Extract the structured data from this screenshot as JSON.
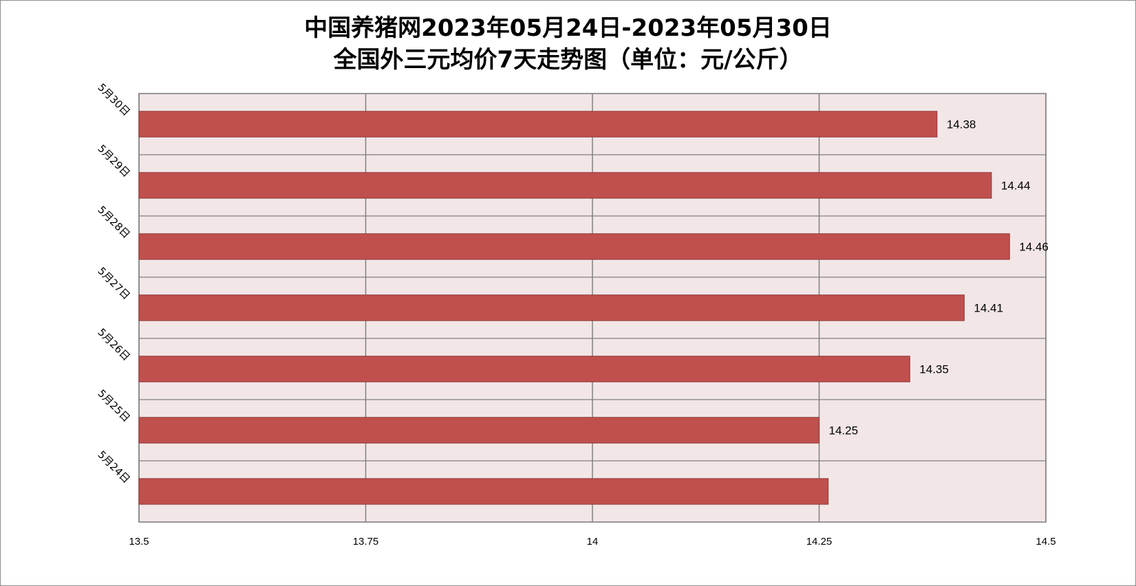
{
  "chart_data": {
    "type": "bar",
    "orientation": "horizontal",
    "title_line1": "中国养猪网2023年05月24日-2023年05月30日",
    "title_line2": "全国外三元均价7天走势图（单位：元/公斤）",
    "categories": [
      "5月30日",
      "5月29日",
      "5月28日",
      "5月27日",
      "5月26日",
      "5月25日",
      "5月24日"
    ],
    "values": [
      14.38,
      14.44,
      14.46,
      14.41,
      14.35,
      14.25,
      14.26
    ],
    "data_labels": [
      "14.38",
      "14.44",
      "14.46",
      "14.41",
      "14.35",
      "14.25",
      ""
    ],
    "xlim": [
      13.5,
      14.5
    ],
    "xticks": [
      13.5,
      13.75,
      14,
      14.25,
      14.5
    ],
    "xtick_labels": [
      "13.5",
      "13.75",
      "14",
      "14.25",
      "14.5"
    ],
    "xlabel": "",
    "ylabel": "",
    "grid": true,
    "legend": "none",
    "colors": {
      "bar_fill": "#c0504d",
      "bar_stroke": "#8c3836",
      "plot_background": "#f2e6e6",
      "grid": "#808080"
    }
  }
}
